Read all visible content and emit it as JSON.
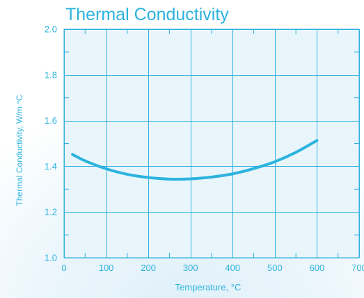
{
  "chart_data": {
    "type": "line",
    "title": "Thermal Conductivity",
    "xlabel": "Temperature, °C",
    "ylabel": "Thermal Conductivity, W/m °C",
    "xlim": [
      0,
      700
    ],
    "ylim": [
      1.0,
      2.0
    ],
    "xticks": [
      "0",
      "100",
      "200",
      "300",
      "400",
      "500",
      "600",
      "700"
    ],
    "yticks": [
      "1.0",
      "1.2",
      "1.4",
      "1.6",
      "1.8",
      "2.0"
    ],
    "grid": true,
    "series": [
      {
        "x": [
          20,
          50,
          100,
          150,
          200,
          250,
          300,
          350,
          400,
          450,
          500,
          550,
          600
        ],
        "y": [
          1.452,
          1.424,
          1.389,
          1.365,
          1.351,
          1.344,
          1.345,
          1.353,
          1.367,
          1.39,
          1.42,
          1.461,
          1.513
        ]
      }
    ]
  },
  "colors": {
    "accent": "#2cb3de",
    "grid": "#2fb0de",
    "plot_bg": "#e8f6fc",
    "page_bg_gradient": "#e9f5fb"
  }
}
